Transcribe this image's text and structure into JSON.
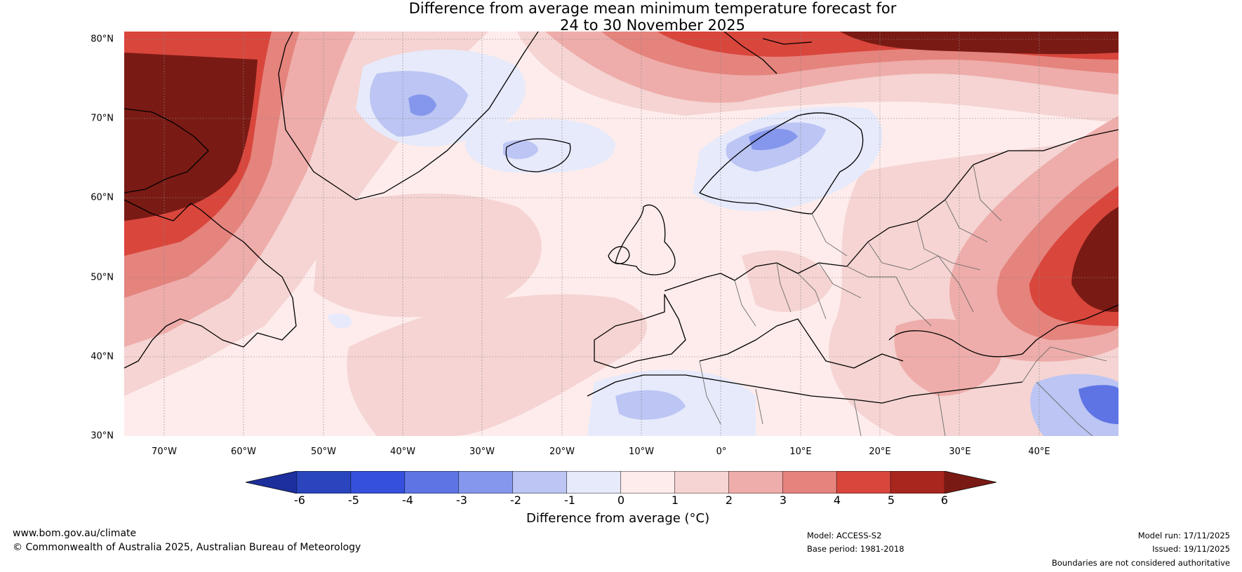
{
  "title": {
    "line1": "Difference from average mean minimum temperature forecast for",
    "line2": "24 to 30 November 2025"
  },
  "map": {
    "latitude_labels": [
      "80°N",
      "70°N",
      "60°N",
      "50°N",
      "40°N",
      "30°N"
    ],
    "longitude_labels": [
      "70°W",
      "60°W",
      "50°W",
      "40°W",
      "30°W",
      "20°W",
      "10°W",
      "0°",
      "10°E",
      "20°E",
      "30°E",
      "40°E"
    ],
    "extent": {
      "lon_min": -75,
      "lon_max": 50,
      "lat_min": 30,
      "lat_max": 81
    }
  },
  "colorbar": {
    "ticks": [
      "-6",
      "-5",
      "-4",
      "-3",
      "-2",
      "-1",
      "0",
      "1",
      "2",
      "3",
      "4",
      "5",
      "6"
    ],
    "colors": [
      "#1c2f9c",
      "#2b45bf",
      "#3550dc",
      "#5f74e4",
      "#8597ec",
      "#bcc5f3",
      "#e6eafb",
      "#fdeceb",
      "#f5d4d3",
      "#eeadaa",
      "#e5837d",
      "#d9463c",
      "#a9261f",
      "#7a1a14"
    ],
    "label": "Difference from average (°C)"
  },
  "footer": {
    "url": "www.bom.gov.au/climate",
    "copyright": "© Commonwealth of Australia 2025, Australian Bureau of Meteorology",
    "model": "Model: ACCESS-S2",
    "base_period": "Base period: 1981-2018",
    "model_run": "Model run: 17/11/2025",
    "issued": "Issued: 19/11/2025",
    "disclaimer": "Boundaries are not considered authoritative"
  }
}
